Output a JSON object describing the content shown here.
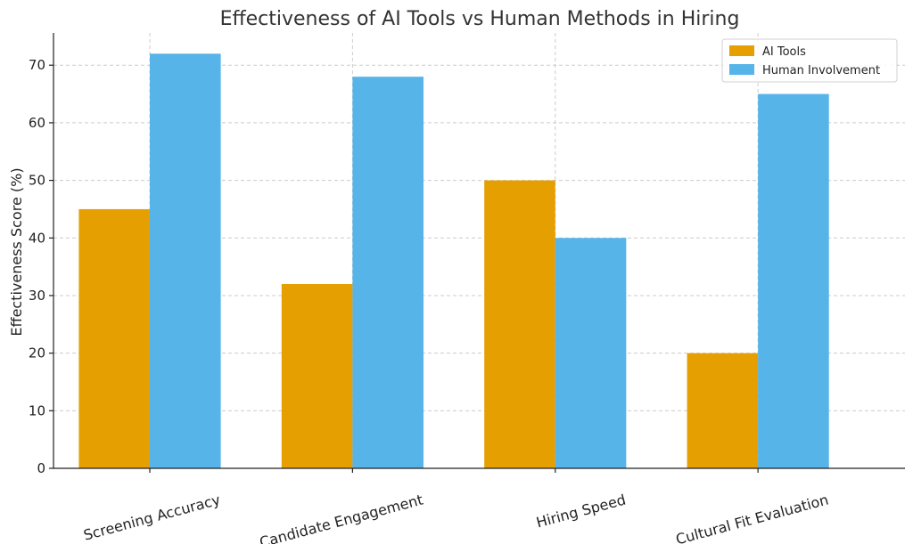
{
  "chart_data": {
    "type": "bar",
    "title": "Effectiveness of AI Tools vs Human Methods in Hiring",
    "xlabel": "",
    "ylabel": "Effectiveness Score (%)",
    "categories": [
      "Screening Accuracy",
      "Candidate Engagement",
      "Hiring Speed",
      "Cultural Fit Evaluation"
    ],
    "series": [
      {
        "name": "AI Tools",
        "values": [
          45,
          32,
          50,
          20
        ],
        "color": "#E69F00"
      },
      {
        "name": "Human Involvement",
        "values": [
          72,
          68,
          40,
          65
        ],
        "color": "#56B4E9"
      }
    ],
    "ylim": [
      0,
      75.6
    ],
    "yticks": [
      "0",
      "10",
      "20",
      "30",
      "40",
      "50",
      "60",
      "70"
    ],
    "grid": true,
    "legend": "top-right"
  }
}
